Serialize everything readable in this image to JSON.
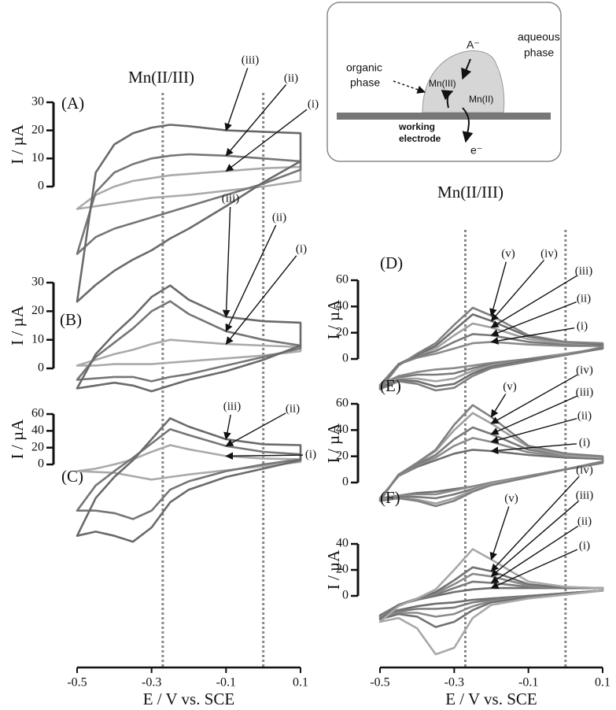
{
  "chart_data": [
    {
      "type": "line",
      "label": "(A)",
      "ylabel": "I / µA",
      "xlim": [
        -0.5,
        0.1
      ],
      "ylim": [
        -43,
        34
      ],
      "yticks": [
        0,
        10,
        20,
        30
      ],
      "x": [
        -0.5,
        -0.45,
        -0.4,
        -0.35,
        -0.3,
        -0.25,
        -0.2,
        -0.1,
        0,
        0.1,
        0.1,
        0,
        -0.1,
        -0.2,
        -0.25,
        -0.3,
        -0.35,
        -0.4,
        -0.45,
        -0.5
      ],
      "series": [
        {
          "name": "(i)",
          "color": "#aaaaaa",
          "values": [
            -8,
            -3,
            0,
            2,
            3,
            4,
            4.5,
            5.5,
            6.5,
            7,
            2,
            0,
            -1.5,
            -3,
            -3.5,
            -4,
            -5,
            -6,
            -7,
            -8
          ]
        },
        {
          "name": "(ii)",
          "color": "#767676",
          "values": [
            -24,
            -2,
            5,
            8,
            10,
            11,
            11.5,
            11,
            10,
            9,
            6,
            1,
            -3,
            -7,
            -9,
            -11,
            -13,
            -15,
            -18,
            -24
          ]
        },
        {
          "name": "(iii)",
          "color": "#6a6a6a",
          "values": [
            -41,
            5,
            15,
            19,
            21,
            22,
            21.5,
            20,
            19.5,
            19,
            9,
            1.5,
            -7,
            -15,
            -18.5,
            -22.7,
            -26,
            -30,
            -35,
            -41
          ]
        }
      ]
    },
    {
      "type": "line",
      "label": "(B)",
      "ylabel": "I / µA",
      "xlim": [
        -0.5,
        0.1
      ],
      "ylim": [
        -9,
        38
      ],
      "yticks": [
        0,
        10,
        20,
        30
      ],
      "x": [
        -0.5,
        -0.45,
        -0.4,
        -0.35,
        -0.3,
        -0.25,
        -0.2,
        -0.1,
        0,
        0.1,
        0.1,
        0,
        -0.1,
        -0.2,
        -0.25,
        -0.3,
        -0.35,
        -0.4,
        -0.45,
        -0.5
      ],
      "series": [
        {
          "name": "(i)",
          "color": "#aaaaaa",
          "values": [
            1,
            3,
            5,
            6.5,
            8.5,
            10,
            9.5,
            8.5,
            8,
            7.5,
            6,
            4.5,
            3.5,
            2.5,
            2,
            1.5,
            1.5,
            1.5,
            1,
            1
          ]
        },
        {
          "name": "(ii)",
          "color": "#767676",
          "values": [
            -4,
            4,
            9,
            14,
            20,
            23.5,
            19,
            13,
            10,
            8,
            7,
            4,
            1,
            -2,
            -3,
            -4.5,
            -3,
            -3,
            -3.5,
            -4
          ]
        },
        {
          "name": "(iii)",
          "color": "#6a6a6a",
          "values": [
            -7,
            5,
            12,
            18,
            25,
            29,
            24,
            18,
            16.5,
            16,
            8,
            3,
            -1,
            -4,
            -6,
            -8,
            -6,
            -5,
            -6,
            -7
          ]
        }
      ]
    },
    {
      "type": "line",
      "label": "(C)",
      "ylabel": "I / µA",
      "xlabel": "E / V vs. SCE",
      "xlim": [
        -0.5,
        0.1
      ],
      "xticks": [
        -0.5,
        -0.3,
        -0.1,
        0.1
      ],
      "ylim": [
        -95,
        62
      ],
      "yticks": [
        0,
        20,
        40,
        60
      ],
      "x": [
        -0.5,
        -0.45,
        -0.4,
        -0.35,
        -0.3,
        -0.25,
        -0.2,
        -0.1,
        0,
        0.1,
        0.1,
        0,
        -0.1,
        -0.2,
        -0.25,
        -0.3,
        -0.35,
        -0.4,
        -0.45,
        -0.5
      ],
      "series": [
        {
          "name": "(i)",
          "color": "#aaaaaa",
          "values": [
            -8,
            -5,
            0,
            6,
            15,
            23,
            18,
            10,
            7,
            6,
            3,
            -2,
            -7,
            -12,
            -15,
            -18,
            -14,
            -10,
            -9,
            -8
          ]
        },
        {
          "name": "(ii)",
          "color": "#767676",
          "values": [
            -55,
            -25,
            -8,
            8,
            25,
            42,
            35,
            22,
            15,
            12,
            6,
            0,
            -8,
            -20,
            -30,
            -55,
            -65,
            -58,
            -55,
            -55
          ]
        },
        {
          "name": "(iii)",
          "color": "#6a6a6a",
          "values": [
            -85,
            -40,
            -15,
            5,
            30,
            55,
            45,
            30,
            24,
            23,
            5,
            -5,
            -15,
            -30,
            -45,
            -75,
            -92,
            -85,
            -80,
            -85
          ]
        }
      ]
    },
    {
      "type": "line",
      "label": "(D)",
      "ylabel": "I / µA",
      "xlim": [
        -0.5,
        0.1
      ],
      "ylim": [
        -28,
        62
      ],
      "yticks": [
        0,
        20,
        40,
        60
      ],
      "x": [
        -0.5,
        -0.45,
        -0.4,
        -0.35,
        -0.3,
        -0.25,
        -0.2,
        -0.1,
        0,
        0.1,
        0.1,
        0,
        -0.1,
        -0.2,
        -0.25,
        -0.3,
        -0.35,
        -0.4,
        -0.45,
        -0.5
      ],
      "series": [
        {
          "name": "(i)",
          "color": "#8a8a8a",
          "values": [
            -20,
            -4,
            1,
            4,
            8,
            12,
            13,
            11,
            10,
            10,
            8,
            4,
            0,
            -3,
            -5,
            -7,
            -8,
            -10,
            -13,
            -20
          ]
        },
        {
          "name": "(ii)",
          "color": "#7a7a7a",
          "values": [
            -20,
            -4,
            2,
            6,
            13,
            19,
            18,
            13,
            11,
            10,
            8,
            4,
            0,
            -4,
            -7,
            -11,
            -12,
            -12,
            -14,
            -20
          ]
        },
        {
          "name": "(iii)",
          "color": "#a0a0a0",
          "values": [
            -21,
            -4,
            3,
            8,
            18,
            27,
            24,
            15,
            12,
            11,
            8,
            4,
            -1,
            -5,
            -9,
            -15,
            -17,
            -15,
            -15,
            -21
          ]
        },
        {
          "name": "(iv)",
          "color": "#6e6e6e",
          "values": [
            -22,
            -4,
            3,
            10,
            22,
            34,
            29,
            17,
            13,
            11,
            8,
            3,
            -1,
            -6,
            -11,
            -19,
            -21,
            -17,
            -16,
            -22
          ]
        },
        {
          "name": "(v)",
          "color": "#808080",
          "values": [
            -23,
            -5,
            4,
            12,
            26,
            39,
            33,
            18,
            13,
            12,
            9,
            3,
            -2,
            -7,
            -13,
            -22,
            -24,
            -19,
            -17,
            -23
          ]
        }
      ]
    },
    {
      "type": "line",
      "label": "(E)",
      "ylabel": "I / µA",
      "xlim": [
        -0.5,
        0.1
      ],
      "ylim": [
        -18,
        68
      ],
      "yticks": [
        0,
        20,
        40,
        60
      ],
      "x": [
        -0.5,
        -0.45,
        -0.4,
        -0.35,
        -0.3,
        -0.25,
        -0.2,
        -0.1,
        0,
        0.1,
        0.1,
        0,
        -0.1,
        -0.2,
        -0.25,
        -0.3,
        -0.35,
        -0.4,
        -0.45,
        -0.5
      ],
      "series": [
        {
          "name": "(i)",
          "color": "#6e6e6e",
          "values": [
            -12,
            5,
            12,
            17,
            22,
            25,
            24,
            21,
            19,
            18,
            15,
            10,
            5,
            0,
            -3,
            -5,
            -7,
            -8,
            -10,
            -12
          ]
        },
        {
          "name": "(ii)",
          "color": "#8a8a8a",
          "values": [
            -12,
            5,
            13,
            19,
            28,
            34,
            31,
            23,
            20,
            19,
            15,
            10,
            5,
            0,
            -3,
            -6,
            -9,
            -9,
            -10,
            -12
          ]
        },
        {
          "name": "(iii)",
          "color": "#7a7a7a",
          "values": [
            -13,
            6,
            14,
            21,
            33,
            42,
            37,
            25,
            21,
            19,
            15,
            10,
            4,
            -1,
            -5,
            -9,
            -12,
            -11,
            -11,
            -13
          ]
        },
        {
          "name": "(iv)",
          "color": "#a0a0a0",
          "values": [
            -13,
            6,
            15,
            24,
            40,
            53,
            45,
            27,
            21,
            19,
            16,
            10,
            4,
            -1,
            -6,
            -12,
            -16,
            -13,
            -12,
            -13
          ]
        },
        {
          "name": "(v)",
          "color": "#808080",
          "values": [
            -14,
            6,
            15,
            25,
            44,
            59,
            50,
            28,
            22,
            20,
            16,
            10,
            4,
            -2,
            -7,
            -14,
            -18,
            -14,
            -12,
            -14
          ]
        }
      ]
    },
    {
      "type": "line",
      "label": "(F)",
      "ylabel": "I / µA",
      "xlabel": "E / V vs. SCE",
      "xlim": [
        -0.5,
        0.1
      ],
      "xticks": [
        -0.5,
        -0.3,
        -0.1,
        0.1
      ],
      "ylim": [
        -50,
        42
      ],
      "yticks": [
        0,
        20,
        40
      ],
      "x": [
        -0.5,
        -0.45,
        -0.4,
        -0.35,
        -0.3,
        -0.25,
        -0.2,
        -0.1,
        0,
        0.1,
        0.1,
        0,
        -0.1,
        -0.2,
        -0.25,
        -0.3,
        -0.35,
        -0.4,
        -0.45,
        -0.5
      ],
      "series": [
        {
          "name": "(i)",
          "color": "#6e6e6e",
          "values": [
            -15,
            -7,
            -3,
            0,
            3,
            5,
            6,
            6,
            6,
            6,
            4,
            2,
            0,
            -2,
            -3,
            -5,
            -6,
            -8,
            -11,
            -15
          ]
        },
        {
          "name": "(ii)",
          "color": "#7a7a7a",
          "values": [
            -16,
            -7,
            -3,
            1,
            6,
            11,
            10,
            7,
            6,
            6,
            4,
            2,
            0,
            -3,
            -5,
            -9,
            -10,
            -10,
            -12,
            -16
          ]
        },
        {
          "name": "(iii)",
          "color": "#8a8a8a",
          "values": [
            -17,
            -7,
            -2,
            2,
            9,
            17,
            15,
            8,
            6,
            6,
            4,
            2,
            -1,
            -4,
            -8,
            -14,
            -16,
            -13,
            -13,
            -17
          ]
        },
        {
          "name": "(iv)",
          "color": "#727272",
          "values": [
            -18,
            -7,
            -2,
            3,
            12,
            22,
            19,
            9,
            6,
            6,
            4,
            2,
            -1,
            -5,
            -11,
            -20,
            -24,
            -16,
            -14,
            -18
          ]
        },
        {
          "name": "(v)",
          "color": "#a8a8a8",
          "values": [
            -20,
            -8,
            -2,
            5,
            20,
            36,
            28,
            11,
            7,
            6,
            4,
            1,
            -2,
            -7,
            -17,
            -40,
            -45,
            -25,
            -17,
            -20
          ]
        }
      ]
    }
  ],
  "annotations": [
    {
      "text": "Mn(II/III)",
      "lines": [
        -0.27,
        0
      ]
    },
    {
      "text": "Mn(II/III)",
      "lines": [
        -0.27,
        0
      ]
    }
  ],
  "inset": {
    "aqueous_phase": [
      "aqueous",
      "phase"
    ],
    "anion": "A⁻",
    "organic_phase": [
      "organic",
      "phase"
    ],
    "mn3": "Mn(III)",
    "mn2": "Mn(II)",
    "electrode": [
      "working",
      "electrode"
    ],
    "electron": "e⁻"
  }
}
